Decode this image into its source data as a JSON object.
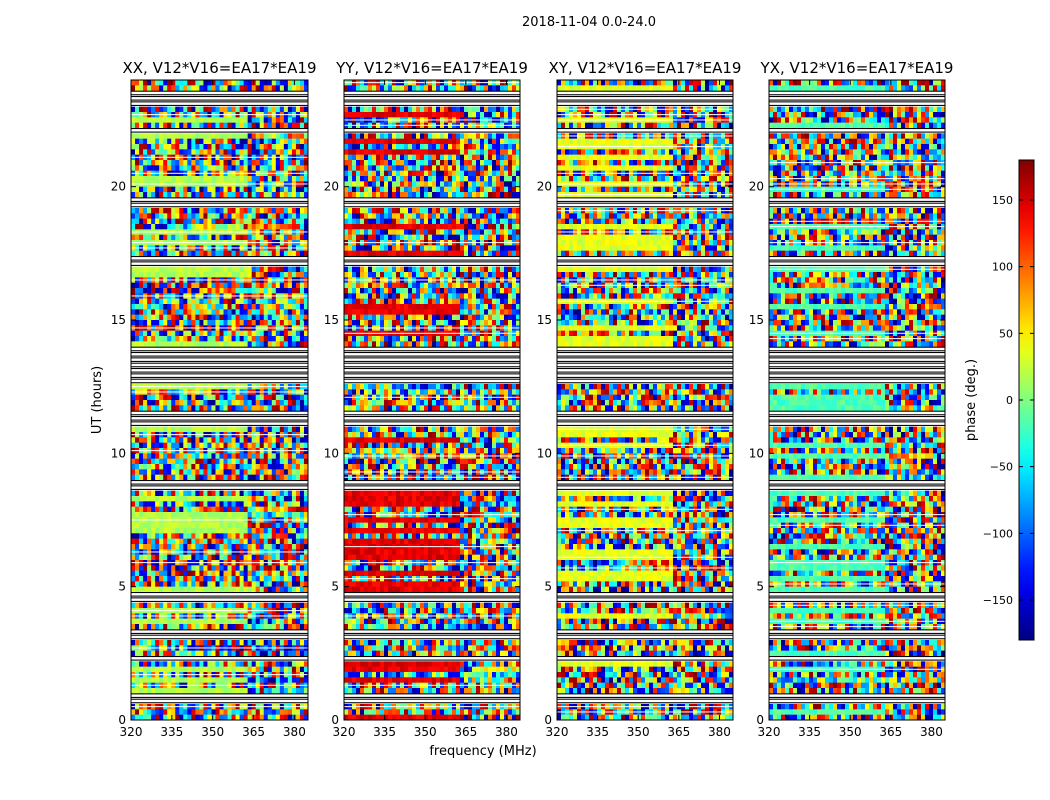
{
  "suptitle": "2018-11-04 0.0-24.0",
  "xlabel": "frequency (MHz)",
  "ylabel": "UT (hours)",
  "colors": {
    "axis": "#000000",
    "background": "#ffffff"
  },
  "chart_data": [
    {
      "type": "heatmap",
      "title": "XX, V12*V16=EA17*EA19",
      "x_range": [
        320,
        385
      ],
      "y_range": [
        0,
        24
      ],
      "x_ticks": [
        "320",
        "335",
        "350",
        "365",
        "380"
      ],
      "y_ticks": [
        "0",
        "5",
        "10",
        "15",
        "20"
      ],
      "x_tick_values": [
        320,
        335,
        350,
        365,
        380
      ],
      "y_tick_values": [
        0,
        5,
        10,
        15,
        20
      ],
      "value": "visibility phase (deg.)",
      "grid": false
    },
    {
      "type": "heatmap",
      "title": "YY, V12*V16=EA17*EA19",
      "x_range": [
        320,
        385
      ],
      "y_range": [
        0,
        24
      ],
      "x_ticks": [
        "320",
        "335",
        "350",
        "365",
        "380"
      ],
      "y_ticks": [
        "0",
        "5",
        "10",
        "15",
        "20"
      ],
      "x_tick_values": [
        320,
        335,
        350,
        365,
        380
      ],
      "y_tick_values": [
        0,
        5,
        10,
        15,
        20
      ],
      "value": "visibility phase (deg.)",
      "grid": false
    },
    {
      "type": "heatmap",
      "title": "XY, V12*V16=EA17*EA19",
      "x_range": [
        320,
        385
      ],
      "y_range": [
        0,
        24
      ],
      "x_ticks": [
        "320",
        "335",
        "350",
        "365",
        "380"
      ],
      "y_ticks": [
        "0",
        "5",
        "10",
        "15",
        "20"
      ],
      "x_tick_values": [
        320,
        335,
        350,
        365,
        380
      ],
      "y_tick_values": [
        0,
        5,
        10,
        15,
        20
      ],
      "value": "visibility phase (deg.)",
      "grid": false
    },
    {
      "type": "heatmap",
      "title": "YX, V12*V16=EA17*EA19",
      "x_range": [
        320,
        385
      ],
      "y_range": [
        0,
        24
      ],
      "x_ticks": [
        "320",
        "335",
        "350",
        "365",
        "380"
      ],
      "y_ticks": [
        "0",
        "5",
        "10",
        "15",
        "20"
      ],
      "x_tick_values": [
        320,
        335,
        350,
        365,
        380
      ],
      "y_tick_values": [
        0,
        5,
        10,
        15,
        20
      ],
      "value": "visibility phase (deg.)",
      "grid": false
    }
  ],
  "colorbar": {
    "label": "phase (deg.)",
    "range": [
      -180,
      180
    ],
    "ticks": [
      "150",
      "100",
      "50",
      "0",
      "−50",
      "−100",
      "−150"
    ],
    "tick_values": [
      150,
      100,
      50,
      0,
      -50,
      -100,
      -150
    ],
    "colormap": "jet"
  }
}
